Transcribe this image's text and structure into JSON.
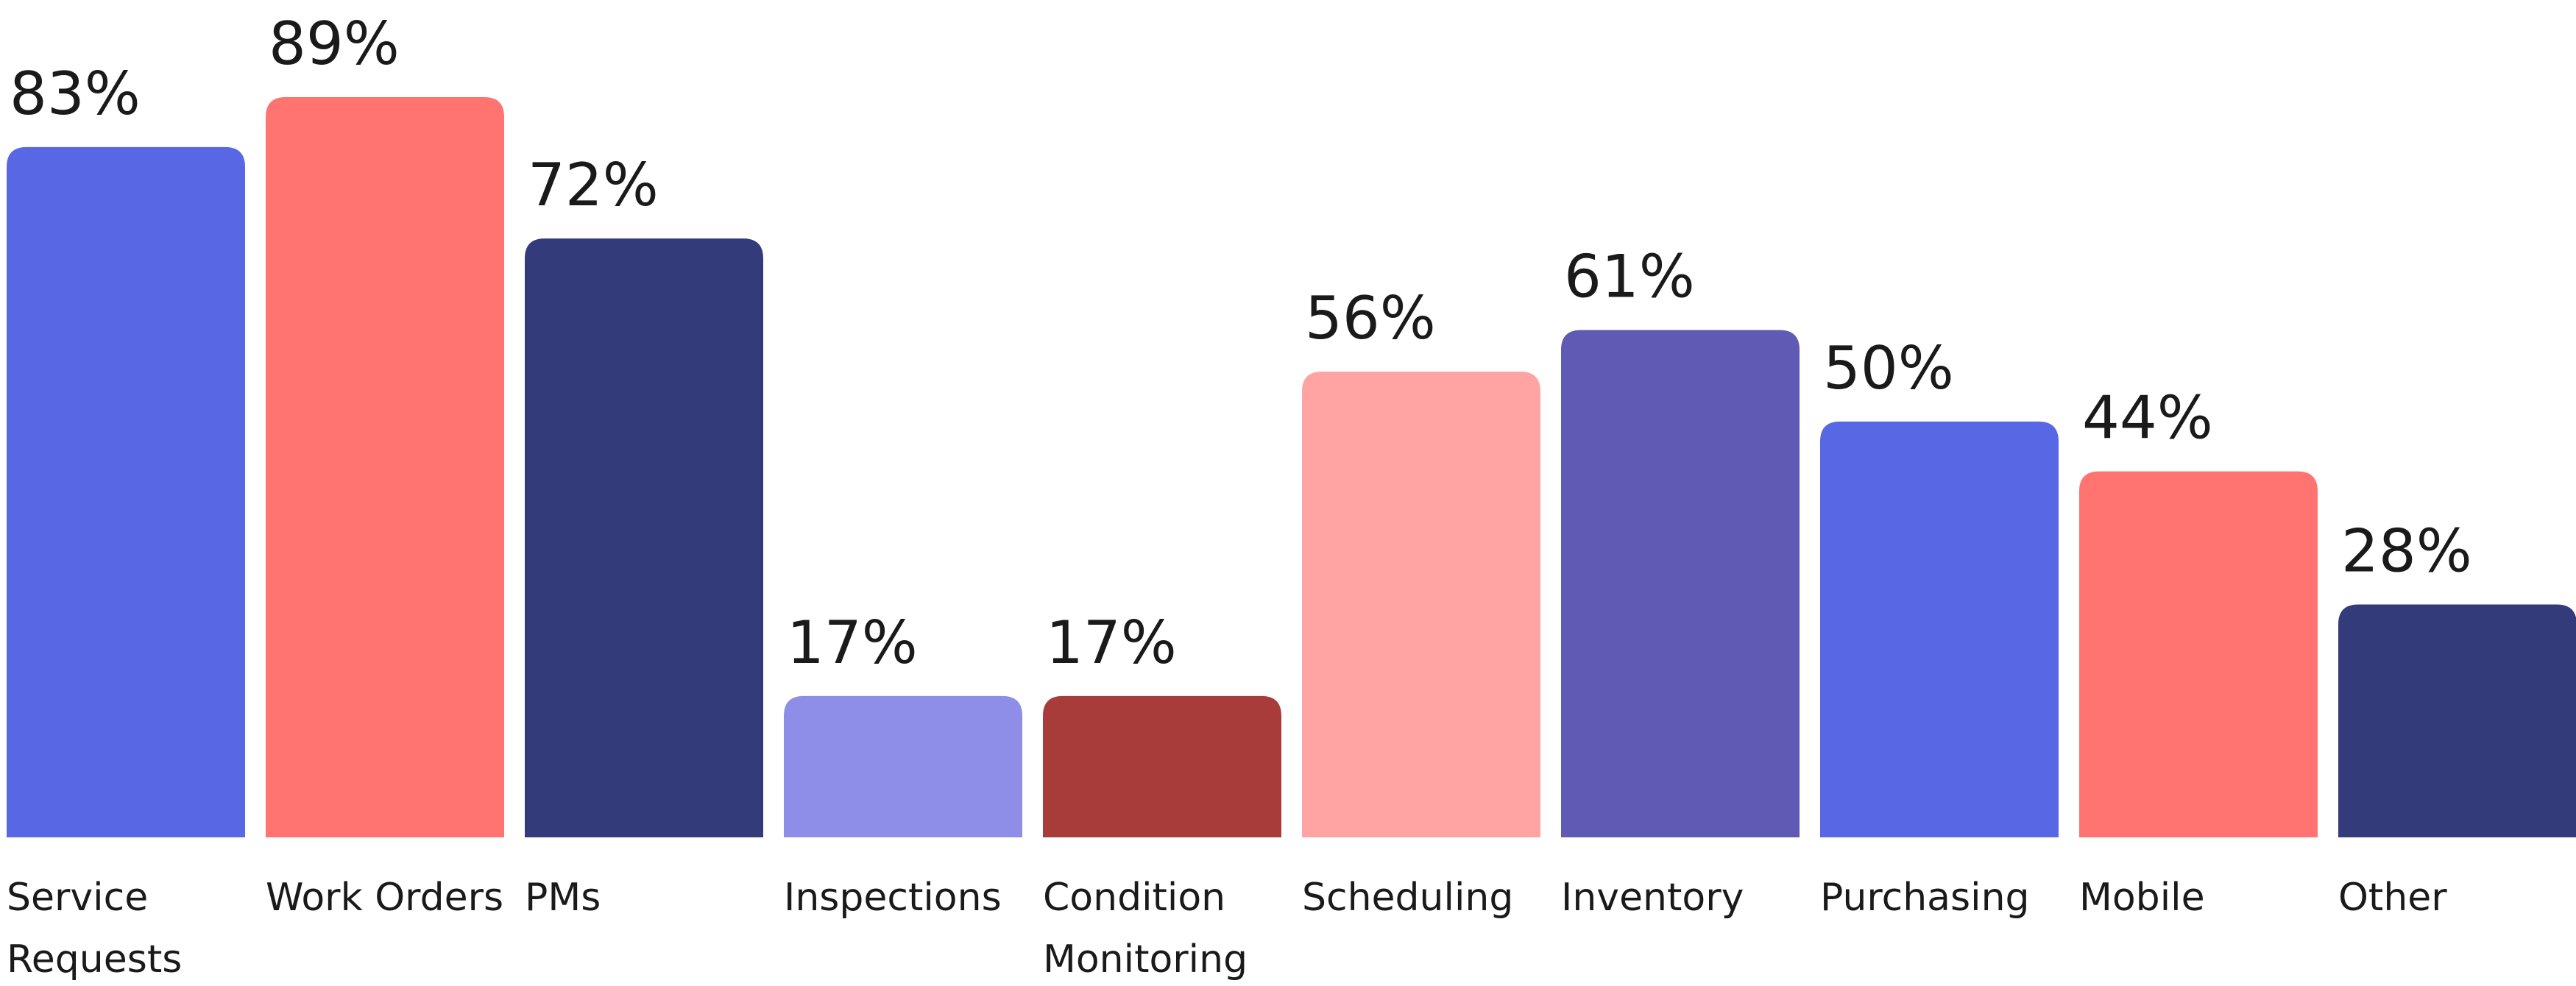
{
  "chart_data": {
    "type": "bar",
    "categories": [
      "Service Requests",
      "Work Orders",
      "PMs",
      "Inspections",
      "Condition Monitoring",
      "Scheduling",
      "Inventory",
      "Purchasing",
      "Mobile",
      "Other"
    ],
    "values": [
      83,
      89,
      72,
      17,
      17,
      56,
      61,
      50,
      44,
      28
    ],
    "value_labels": [
      "83%",
      "89%",
      "72%",
      "17%",
      "17%",
      "56%",
      "61%",
      "50%",
      "44%",
      "28%"
    ],
    "colors": [
      "#5868e4",
      "#ff7370",
      "#343b7b",
      "#8e8ee9",
      "#a83c3b",
      "#ffa4a3",
      "#5f5ab3",
      "#5868e4",
      "#ff7370",
      "#343b7b"
    ]
  }
}
